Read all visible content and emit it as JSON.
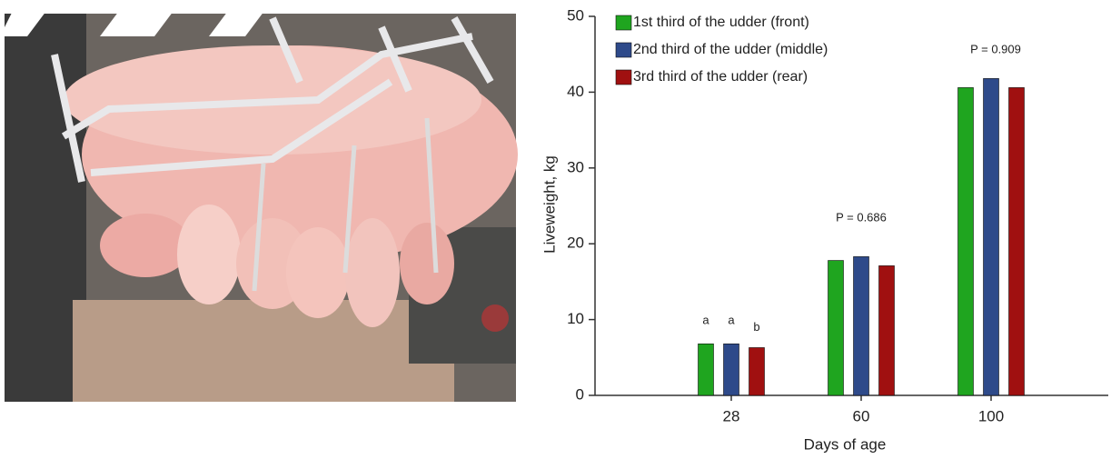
{
  "chart_data": {
    "type": "bar",
    "y_label": "Liveweight, kg",
    "x_label": "Days of age",
    "categories": [
      "28",
      "60",
      "100"
    ],
    "series": [
      {
        "name": "1st third of the udder (front)",
        "color": "#1fa51f",
        "values": [
          6.8,
          17.8,
          40.6
        ]
      },
      {
        "name": "2nd third of the udder (middle)",
        "color": "#2e4a8a",
        "values": [
          6.8,
          18.3,
          41.8
        ]
      },
      {
        "name": "3rd third of the udder (rear)",
        "color": "#a01010",
        "values": [
          6.3,
          17.1,
          40.6
        ]
      }
    ],
    "annotations": [
      "a",
      "a",
      "b",
      "P = 0.686",
      "P = 0.909"
    ],
    "ylim": [
      0,
      50
    ],
    "yticks": [
      0,
      10,
      20,
      30,
      40,
      50
    ],
    "legend": "top-left"
  }
}
